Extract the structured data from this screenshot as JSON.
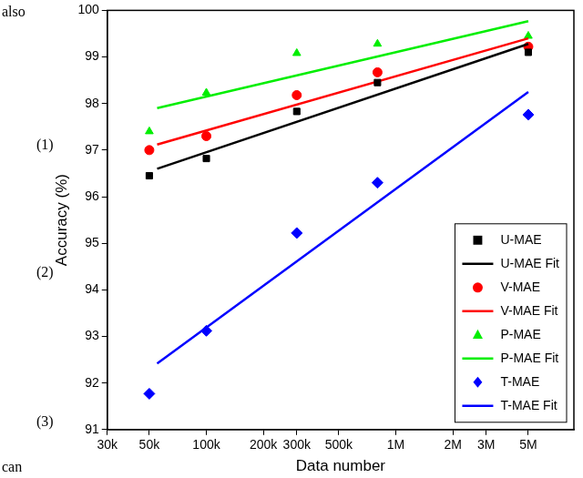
{
  "chart_data": {
    "type": "scatter",
    "x_label": "Data number",
    "y_label": "Accuracy (%)",
    "log": "x",
    "grid": false,
    "legend": "lower right",
    "xlim": [
      30000,
      8700000
    ],
    "ylim": [
      91,
      100
    ],
    "xticks": [
      {
        "value": 30000,
        "label": "30k"
      },
      {
        "value": 50000,
        "label": "50k"
      },
      {
        "value": 100000,
        "label": "100k"
      },
      {
        "value": 200000,
        "label": "200k"
      },
      {
        "value": 300000,
        "label": "300k"
      },
      {
        "value": 500000,
        "label": "500k"
      },
      {
        "value": 1000000,
        "label": "1M"
      },
      {
        "value": 2000000,
        "label": "2M"
      },
      {
        "value": 3000000,
        "label": "3M"
      },
      {
        "value": 5000000,
        "label": "5M"
      }
    ],
    "yticks": [
      91,
      92,
      93,
      94,
      95,
      96,
      97,
      98,
      99,
      100
    ],
    "annotations": [
      "also",
      "(1)",
      "(2)",
      "(3)",
      "can"
    ],
    "series": [
      {
        "name": "U-MAE",
        "type": "scatter",
        "marker": "square",
        "color": "#000000",
        "x": [
          50000,
          100000,
          300000,
          800000,
          5000000
        ],
        "values": [
          96.45,
          96.82,
          97.83,
          98.45,
          99.1
        ]
      },
      {
        "name": "U-MAE Fit",
        "type": "line",
        "line_style": "solid",
        "color": "#000000",
        "x": [
          55000,
          5000000
        ],
        "values": [
          96.6,
          99.28
        ]
      },
      {
        "name": "V-MAE",
        "type": "scatter",
        "marker": "circle",
        "color": "#ff0000",
        "x": [
          50000,
          100000,
          300000,
          800000,
          5000000
        ],
        "values": [
          97.0,
          97.3,
          98.18,
          98.67,
          99.22
        ]
      },
      {
        "name": "V-MAE Fit",
        "type": "line",
        "line_style": "solid",
        "color": "#ff0000",
        "x": [
          55000,
          5000000
        ],
        "values": [
          97.12,
          99.4
        ]
      },
      {
        "name": "P-MAE",
        "type": "scatter",
        "marker": "triangle",
        "color": "#00ee00",
        "x": [
          50000,
          100000,
          300000,
          800000,
          5000000
        ],
        "values": [
          97.4,
          98.23,
          99.08,
          99.28,
          99.45
        ]
      },
      {
        "name": "P-MAE Fit",
        "type": "line",
        "line_style": "solid",
        "color": "#00ee00",
        "x": [
          55000,
          5000000
        ],
        "values": [
          97.9,
          99.77
        ]
      },
      {
        "name": "T-MAE",
        "type": "scatter",
        "marker": "diamond",
        "color": "#0000ff",
        "x": [
          50000,
          100000,
          300000,
          800000,
          5000000
        ],
        "values": [
          91.77,
          93.12,
          95.22,
          96.3,
          97.76
        ]
      },
      {
        "name": "T-MAE Fit",
        "type": "line",
        "line_style": "solid",
        "color": "#0000ff",
        "x": [
          55000,
          5000000
        ],
        "values": [
          92.42,
          98.25
        ]
      }
    ]
  }
}
